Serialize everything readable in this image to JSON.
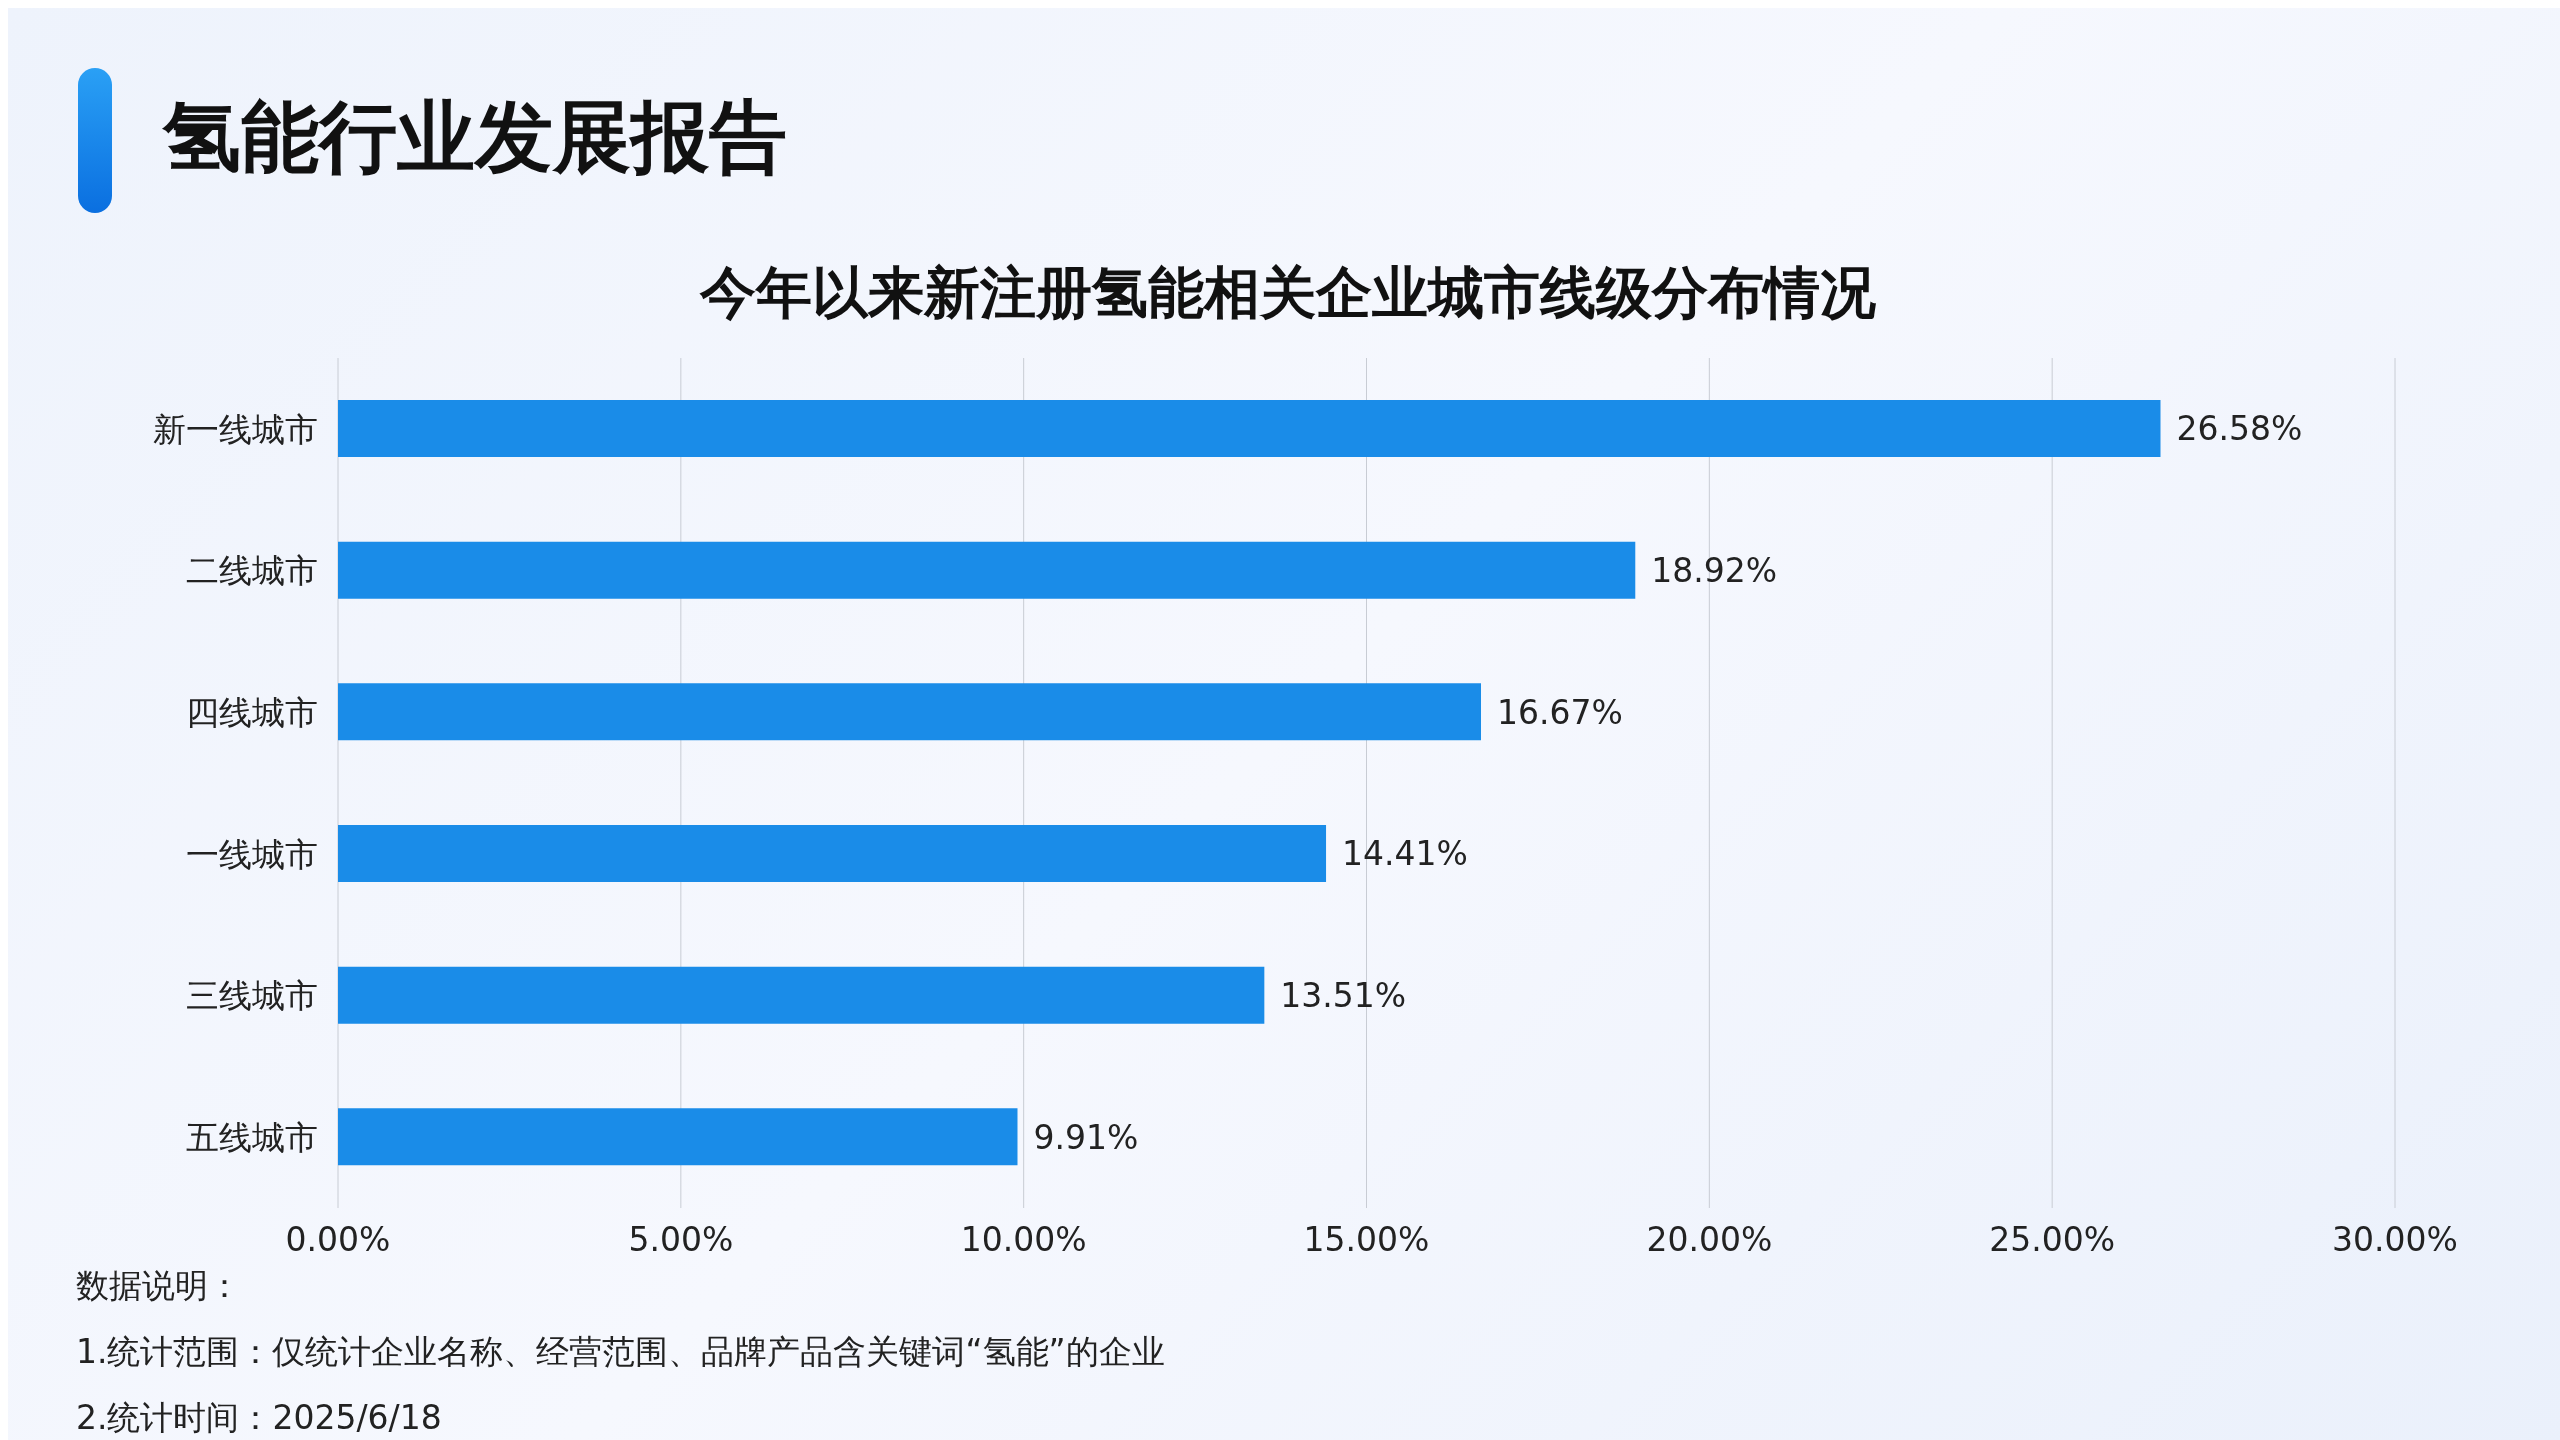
{
  "chart_data": {
    "type": "bar",
    "orientation": "horizontal",
    "title": "氢能行业发展报告",
    "subtitle": "今年以来新注册氢能相关企业城市线级分布情况",
    "categories": [
      "新一线城市",
      "二线城市",
      "四线城市",
      "一线城市",
      "三线城市",
      "五线城市"
    ],
    "values": [
      26.58,
      18.92,
      16.67,
      14.41,
      13.51,
      9.91
    ],
    "value_labels": [
      "26.58%",
      "18.92%",
      "16.67%",
      "14.41%",
      "13.51%",
      "9.91%"
    ],
    "color": "#1a8ce8",
    "xlim": [
      0,
      30
    ],
    "xticks": [
      {
        "value": 0,
        "label": "0.00%"
      },
      {
        "value": 5,
        "label": "5.00%"
      },
      {
        "value": 10,
        "label": "10.00%"
      },
      {
        "value": 15,
        "label": "15.00%"
      },
      {
        "value": 20,
        "label": "20.00%"
      },
      {
        "value": 25,
        "label": "25.00%"
      },
      {
        "value": 30,
        "label": "30.00%"
      }
    ],
    "grid": "x",
    "annotations": [
      "数据说明：",
      "1.统计范围：仅统计企业名称、经营范围、品牌产品含关键词“氢能”的企业",
      "2.统计时间：2025/6/18"
    ]
  }
}
